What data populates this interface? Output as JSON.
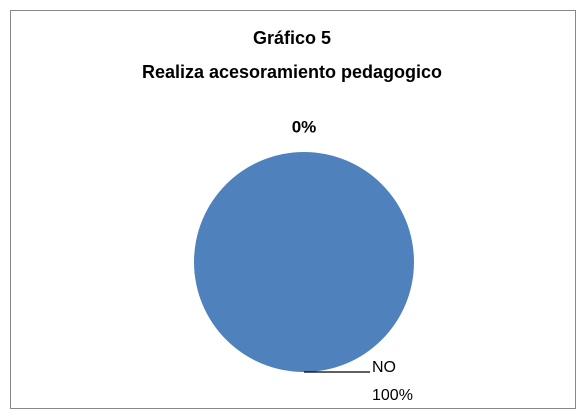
{
  "chart_data": {
    "type": "pie",
    "title": "Gráfico 5",
    "subtitle": "Realiza acesoramiento pedagogico",
    "categories": [
      null,
      "NO"
    ],
    "values": [
      0,
      100
    ],
    "value_labels": [
      "0%",
      "100%"
    ],
    "colors": [
      "#4f81bd",
      "#4f81bd"
    ]
  }
}
